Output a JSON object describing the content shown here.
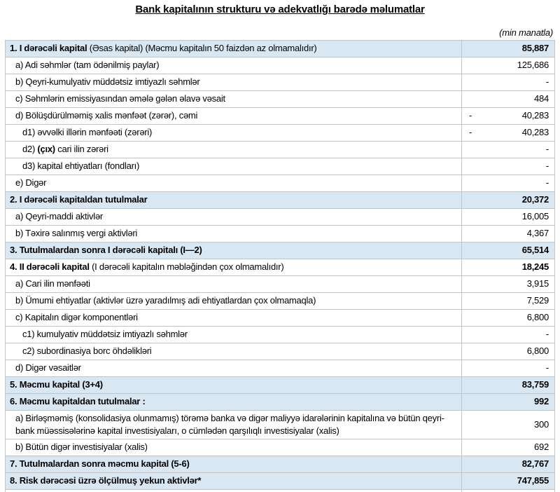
{
  "title": "Bank kapitalının strukturu və adekvatlığı barədə məlumatlar",
  "unit_note": "(min manatla)",
  "colors": {
    "section_row_bg": "#d9e7f3",
    "table_border": "#c4c4c4",
    "text": "#000000"
  },
  "table": {
    "rows": [
      {
        "blue": true,
        "bold": true,
        "indent": 0,
        "minus": "",
        "value": "85,887",
        "segments": [
          {
            "t": "1. I dərəcəli kapital ",
            "b": true
          },
          {
            "t": "(Əsas kapital) (Məcmu kapitalın 50 faizdən  az olmamalıdır)",
            "b": false
          }
        ]
      },
      {
        "blue": false,
        "bold": false,
        "indent": 1,
        "minus": "",
        "value": "125,686",
        "segments": [
          {
            "t": "a) Adi səhmlər (tam ödənilmiş paylar)",
            "b": false
          }
        ]
      },
      {
        "blue": false,
        "bold": false,
        "indent": 1,
        "minus": "",
        "value": "-",
        "segments": [
          {
            "t": "b) Qeyri-kumulyativ müddətsiz imtiyazlı səhmlər",
            "b": false
          }
        ]
      },
      {
        "blue": false,
        "bold": false,
        "indent": 1,
        "minus": "",
        "value": "484",
        "segments": [
          {
            "t": "c) Səhmlərin emissiyasından əmələ gələn  əlavə vəsait",
            "b": false
          }
        ]
      },
      {
        "blue": false,
        "bold": false,
        "indent": 1,
        "minus": "-",
        "value": "40,283",
        "segments": [
          {
            "t": "d)  Bölüşdürülməmiş xalis mənfəət (zərər), cəmi",
            "b": false
          }
        ]
      },
      {
        "blue": false,
        "bold": false,
        "indent": 2,
        "minus": "-",
        "value": "40,283",
        "segments": [
          {
            "t": "d1) əvvəlki illərin mənfəəti (zərəri)",
            "b": false
          }
        ]
      },
      {
        "blue": false,
        "bold": false,
        "indent": 2,
        "minus": "",
        "value": "-",
        "segments": [
          {
            "t": "d2) ",
            "b": false
          },
          {
            "t": "(çıx)",
            "b": true
          },
          {
            "t": " cari ilin zərəri",
            "b": false
          }
        ]
      },
      {
        "blue": false,
        "bold": false,
        "indent": 2,
        "minus": "",
        "value": "-",
        "segments": [
          {
            "t": "d3) kapital ehtiyatları (fondları)",
            "b": false
          }
        ]
      },
      {
        "blue": false,
        "bold": false,
        "indent": 1,
        "minus": "",
        "value": "-",
        "segments": [
          {
            "t": "e) Digər",
            "b": false
          }
        ]
      },
      {
        "blue": true,
        "bold": true,
        "indent": 0,
        "minus": "",
        "value": "20,372",
        "segments": [
          {
            "t": "2. I dərəcəli kapitaldan  tutulmalar",
            "b": true
          }
        ]
      },
      {
        "blue": false,
        "bold": false,
        "indent": 1,
        "minus": "",
        "value": "16,005",
        "segments": [
          {
            "t": "a) Qeyri-maddi aktivlər",
            "b": false
          }
        ]
      },
      {
        "blue": false,
        "bold": false,
        "indent": 1,
        "minus": "",
        "value": "4,367",
        "segments": [
          {
            "t": "b) Təxirə salınmış vergi aktivləri",
            "b": false
          }
        ]
      },
      {
        "blue": true,
        "bold": true,
        "indent": 0,
        "minus": "",
        "value": "65,514",
        "segments": [
          {
            "t": "3. Tutulmalardan  sonra I dərəcəli kapitalı (I—2)",
            "b": true
          }
        ]
      },
      {
        "blue": false,
        "bold": true,
        "indent": 0,
        "minus": "",
        "value": "18,245",
        "segments": [
          {
            "t": "4. II dərəcəli  kapital ",
            "b": true
          },
          {
            "t": "(I dərəcəli  kapitalın  məbləğindən çox olmamalıdır)",
            "b": false
          }
        ]
      },
      {
        "blue": false,
        "bold": false,
        "indent": 1,
        "minus": "",
        "value": "3,915",
        "segments": [
          {
            "t": "a) Cari ilin mənfəəti",
            "b": false
          }
        ]
      },
      {
        "blue": false,
        "bold": false,
        "indent": 1,
        "minus": "",
        "value": "7,529",
        "segments": [
          {
            "t": "b) Ümumi ehtiyatlar (aktivlər üzrə yaradılmış adi ehtiyatlardan çox olmamaqla)",
            "b": false
          }
        ]
      },
      {
        "blue": false,
        "bold": false,
        "indent": 1,
        "minus": "",
        "value": "6,800",
        "segments": [
          {
            "t": "c)  Kapitalın digər komponentləri",
            "b": false
          }
        ]
      },
      {
        "blue": false,
        "bold": false,
        "indent": 2,
        "minus": "",
        "value": "-",
        "segments": [
          {
            "t": "c1) kumulyativ müddətsiz imtiyazlı səhmlər",
            "b": false
          }
        ]
      },
      {
        "blue": false,
        "bold": false,
        "indent": 2,
        "minus": "",
        "value": "6,800",
        "segments": [
          {
            "t": "c2) subordinasiya borc öhdəlikləri",
            "b": false
          }
        ]
      },
      {
        "blue": false,
        "bold": false,
        "indent": 1,
        "minus": "",
        "value": "-",
        "segments": [
          {
            "t": "d) Digər vəsaitlər",
            "b": false
          }
        ]
      },
      {
        "blue": true,
        "bold": true,
        "indent": 0,
        "minus": "",
        "value": "83,759",
        "segments": [
          {
            "t": "5. Məcmu kapital (3+4)",
            "b": true
          }
        ]
      },
      {
        "blue": true,
        "bold": true,
        "indent": 0,
        "minus": "",
        "value": "992",
        "segments": [
          {
            "t": "6. Məcmu kapitaldan tutulmalar :",
            "b": true
          }
        ]
      },
      {
        "blue": false,
        "bold": false,
        "indent": 1,
        "minus": "",
        "value": "300",
        "segments": [
          {
            "t": "a)   Birləşməmiş (konsolidasiya olunmamış) törəmə banka və digər maliyyə idarələrinin kapitalına və bütün qeyri-bank müəssisələrinə kapital investisiyaları, o cümlədən qarşılıqlı investisiyalar (xalis)",
            "b": false
          }
        ]
      },
      {
        "blue": false,
        "bold": false,
        "indent": 1,
        "minus": "",
        "value": "692",
        "segments": [
          {
            "t": "b)   Bütün digər investisiyalar (xalis)",
            "b": false
          }
        ]
      },
      {
        "blue": true,
        "bold": true,
        "indent": 0,
        "minus": "",
        "value": "82,767",
        "segments": [
          {
            "t": "7. Tutulmalardan  sonra məcmu kapital (5-6)",
            "b": true
          }
        ]
      },
      {
        "blue": true,
        "bold": true,
        "indent": 0,
        "minus": "",
        "value": "747,855",
        "segments": [
          {
            "t": "8. Risk dərəcəsi üzrə ölçülmuş  yekun aktivlər*",
            "b": true
          }
        ]
      }
    ]
  }
}
